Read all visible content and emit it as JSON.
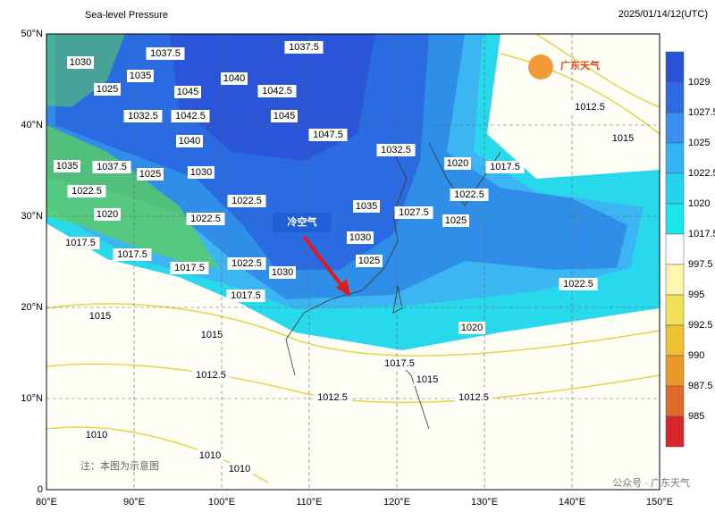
{
  "header": {
    "title": "Sea-level Pressure",
    "time": "2025/01/14/12(UTC)"
  },
  "axes": {
    "lon": [
      "80°E",
      "90°E",
      "100°E",
      "110°E",
      "120°E",
      "130°E",
      "140°E",
      "150°E"
    ],
    "lat": [
      "50°N",
      "40°N",
      "30°N",
      "20°N",
      "10°N",
      "0"
    ]
  },
  "colorbar": {
    "labels": [
      "1029",
      "1027.5",
      "1025",
      "1022.5",
      "1020",
      "1017.5",
      "997.5",
      "995",
      "992.5",
      "990",
      "987.5",
      "985"
    ]
  },
  "contour_labels": [
    "1030",
    "1035",
    "1037.5",
    "1025",
    "1045",
    "1040",
    "1042.5",
    "1037.5",
    "1032.5",
    "1042.5",
    "1045",
    "1047.5",
    "1040",
    "1032.5",
    "1035",
    "1037.5",
    "1025",
    "1030",
    "1022.5",
    "1022.5",
    "1020",
    "1022.5",
    "1017.5",
    "1017.5",
    "1017.5",
    "1022.5",
    "1030",
    "1035",
    "1027.5",
    "1030",
    "1025",
    "1017.5",
    "1015",
    "1015",
    "1012.5",
    "1010",
    "1010",
    "1010",
    "1012.5",
    "1017.5",
    "1015",
    "1012.5",
    "1020",
    "1017.5",
    "1022.5",
    "1025",
    "1022.5",
    "1020",
    "1015",
    "1012.5"
  ],
  "annotations": {
    "cold_air": "冷空气",
    "note": "注：本图为示意图",
    "logo": "广东天气",
    "watermark": "公众号 · 广东天气"
  }
}
